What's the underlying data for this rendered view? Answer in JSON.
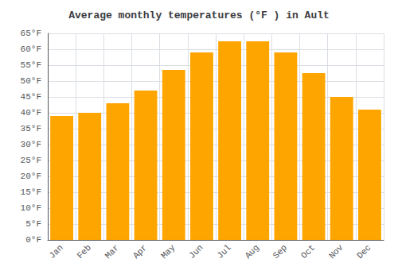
{
  "chart_data": {
    "type": "bar",
    "title": "Average monthly temperatures (°F ) in Ault",
    "categories": [
      "Jan",
      "Feb",
      "Mar",
      "Apr",
      "May",
      "Jun",
      "Jul",
      "Aug",
      "Sep",
      "Oct",
      "Nov",
      "Dec"
    ],
    "values": [
      39,
      40,
      43,
      47,
      53.5,
      59,
      62.5,
      62.5,
      59,
      52.5,
      45,
      41
    ],
    "color": "#FFA500",
    "ylim": [
      0,
      65
    ],
    "yticks": [
      {
        "value": 0,
        "label": "0°F"
      },
      {
        "value": 5,
        "label": "5°F"
      },
      {
        "value": 10,
        "label": "10°F"
      },
      {
        "value": 15,
        "label": "15°F"
      },
      {
        "value": 20,
        "label": "20°F"
      },
      {
        "value": 25,
        "label": "25°F"
      },
      {
        "value": 30,
        "label": "30°F"
      },
      {
        "value": 35,
        "label": "35°F"
      },
      {
        "value": 40,
        "label": "40°F"
      },
      {
        "value": 45,
        "label": "45°F"
      },
      {
        "value": 50,
        "label": "50°F"
      },
      {
        "value": 55,
        "label": "55°F"
      },
      {
        "value": 60,
        "label": "60°F"
      },
      {
        "value": 65,
        "label": "65°F"
      }
    ],
    "grid": true
  }
}
